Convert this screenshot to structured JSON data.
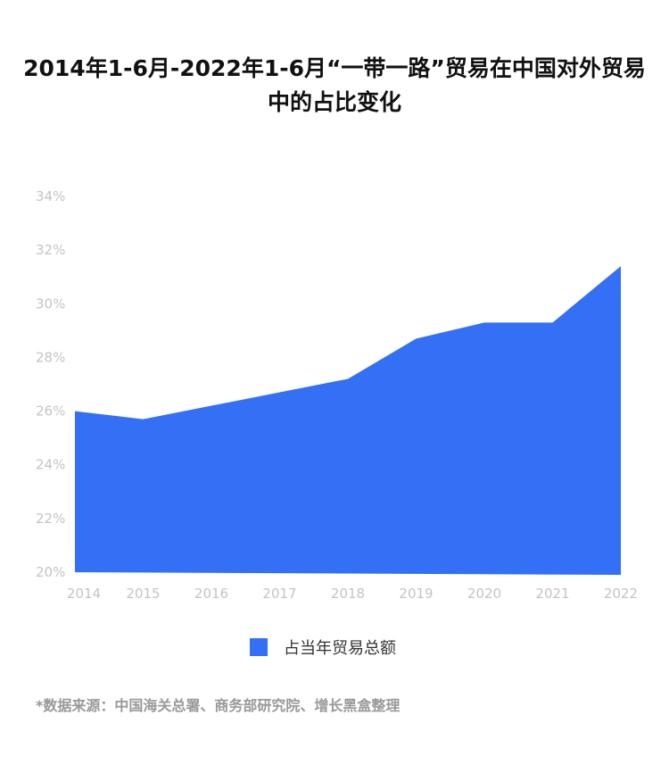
{
  "title": "2014年1-6月-2022年1-6月“一带一路”贸易在中国对外贸易中的占比变化",
  "source": "*数据来源：中国海关总署、商务部研究院、增长黑盒整理",
  "colors": {
    "area": "#3370f5",
    "tick": "#c4c4c4",
    "axis": "#e5e5e5"
  },
  "chart_data": {
    "type": "area",
    "title": "2014年1-6月-2022年1-6月“一带一路”贸易在中国对外贸易中的占比变化",
    "x": [
      "2014",
      "2015",
      "2016",
      "2017",
      "2018",
      "2019",
      "2020",
      "2021",
      "2022"
    ],
    "series": [
      {
        "name": "占当年贸易总额",
        "values": [
          26.0,
          25.7,
          26.2,
          26.7,
          27.2,
          28.7,
          29.3,
          29.3,
          31.4
        ]
      }
    ],
    "ylim": [
      20,
      34
    ],
    "yticks": [
      "20%",
      "22%",
      "24%",
      "26%",
      "28%",
      "30%",
      "32%",
      "34%"
    ],
    "xlabel": "",
    "ylabel": "",
    "legend_position": "bottom",
    "grid": false
  }
}
